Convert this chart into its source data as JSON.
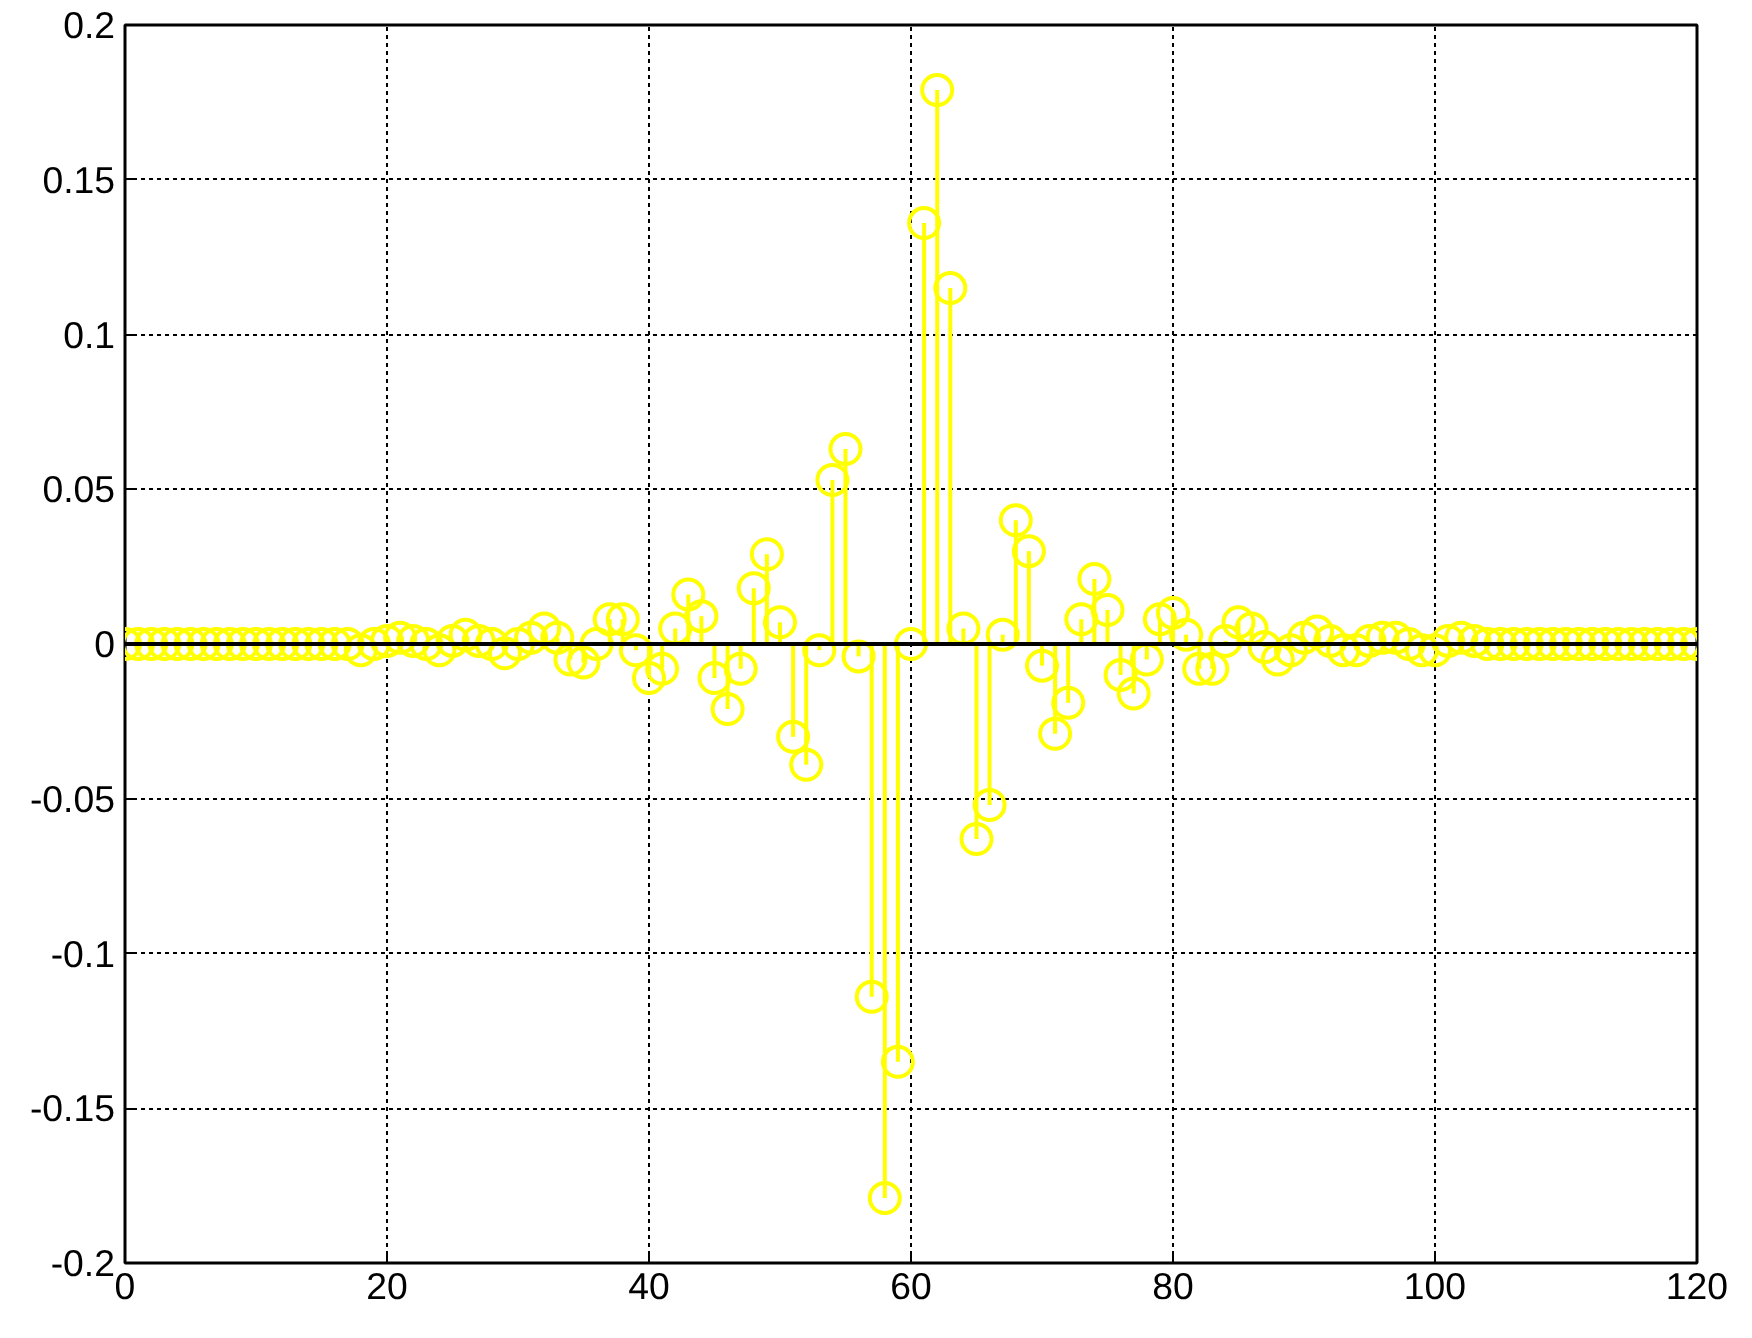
{
  "chart_data": {
    "type": "lollipop",
    "x": [
      0,
      1,
      2,
      3,
      4,
      5,
      6,
      7,
      8,
      9,
      10,
      11,
      12,
      13,
      14,
      15,
      16,
      17,
      18,
      19,
      20,
      21,
      22,
      23,
      24,
      25,
      26,
      27,
      28,
      29,
      30,
      31,
      32,
      33,
      34,
      35,
      36,
      37,
      38,
      39,
      40,
      41,
      42,
      43,
      44,
      45,
      46,
      47,
      48,
      49,
      50,
      51,
      52,
      53,
      54,
      55,
      56,
      57,
      58,
      59,
      60,
      61,
      62,
      63,
      64,
      65,
      66,
      67,
      68,
      69,
      70,
      71,
      72,
      73,
      74,
      75,
      76,
      77,
      78,
      79,
      80,
      81,
      82,
      83,
      84,
      85,
      86,
      87,
      88,
      89,
      90,
      91,
      92,
      93,
      94,
      95,
      96,
      97,
      98,
      99,
      100,
      101,
      102,
      103,
      104,
      105,
      106,
      107,
      108,
      109,
      110,
      111,
      112,
      113,
      114,
      115,
      116,
      117,
      118,
      119,
      120
    ],
    "series": [
      {
        "color": "#ffff00",
        "values": [
          0,
          0,
          0,
          0,
          0,
          0,
          0,
          0,
          0,
          0,
          0,
          0,
          0,
          0,
          0,
          0,
          0,
          0,
          -0.002,
          0,
          0.001,
          0.002,
          0.001,
          0,
          -0.002,
          0.001,
          0.003,
          0.001,
          0,
          -0.003,
          0,
          0.002,
          0.005,
          0.002,
          -0.005,
          -0.006,
          0,
          0.008,
          0.008,
          -0.002,
          -0.011,
          -0.008,
          0.005,
          0.016,
          0.009,
          -0.011,
          -0.021,
          -0.008,
          0.018,
          0.029,
          0.007,
          -0.03,
          -0.039,
          -0.002,
          0.053,
          0.063,
          -0.004,
          -0.114,
          -0.179,
          -0.135,
          0,
          0.136,
          0.179,
          0.115,
          0.005,
          -0.063,
          -0.052,
          0.003,
          0.04,
          0.03,
          -0.007,
          -0.029,
          -0.019,
          0.008,
          0.021,
          0.011,
          -0.01,
          -0.016,
          -0.005,
          0.008,
          0.01,
          0.003,
          -0.008,
          -0.008,
          0.001,
          0.007,
          0.005,
          -0.001,
          -0.005,
          -0.002,
          0.002,
          0.004,
          0.001,
          -0.002,
          -0.002,
          0.001,
          0.002,
          0.002,
          0,
          -0.002,
          -0.002,
          0.001,
          0.002,
          0.001,
          0,
          0,
          0,
          0,
          0,
          0,
          0,
          0,
          0,
          0,
          0,
          0,
          0,
          0,
          0,
          0,
          0
        ]
      }
    ],
    "xlim": [
      0,
      120
    ],
    "ylim": [
      -0.2,
      0.2
    ],
    "xticks": [
      0,
      20,
      40,
      60,
      80,
      100,
      120
    ],
    "yticks": [
      -0.2,
      -0.15,
      -0.1,
      -0.05,
      0,
      0.05,
      0.1,
      0.15,
      0.2
    ],
    "grid": true,
    "marker": "circle",
    "ref_lines": [
      {
        "axis": "y",
        "value": 0,
        "color": "#000000"
      }
    ]
  }
}
